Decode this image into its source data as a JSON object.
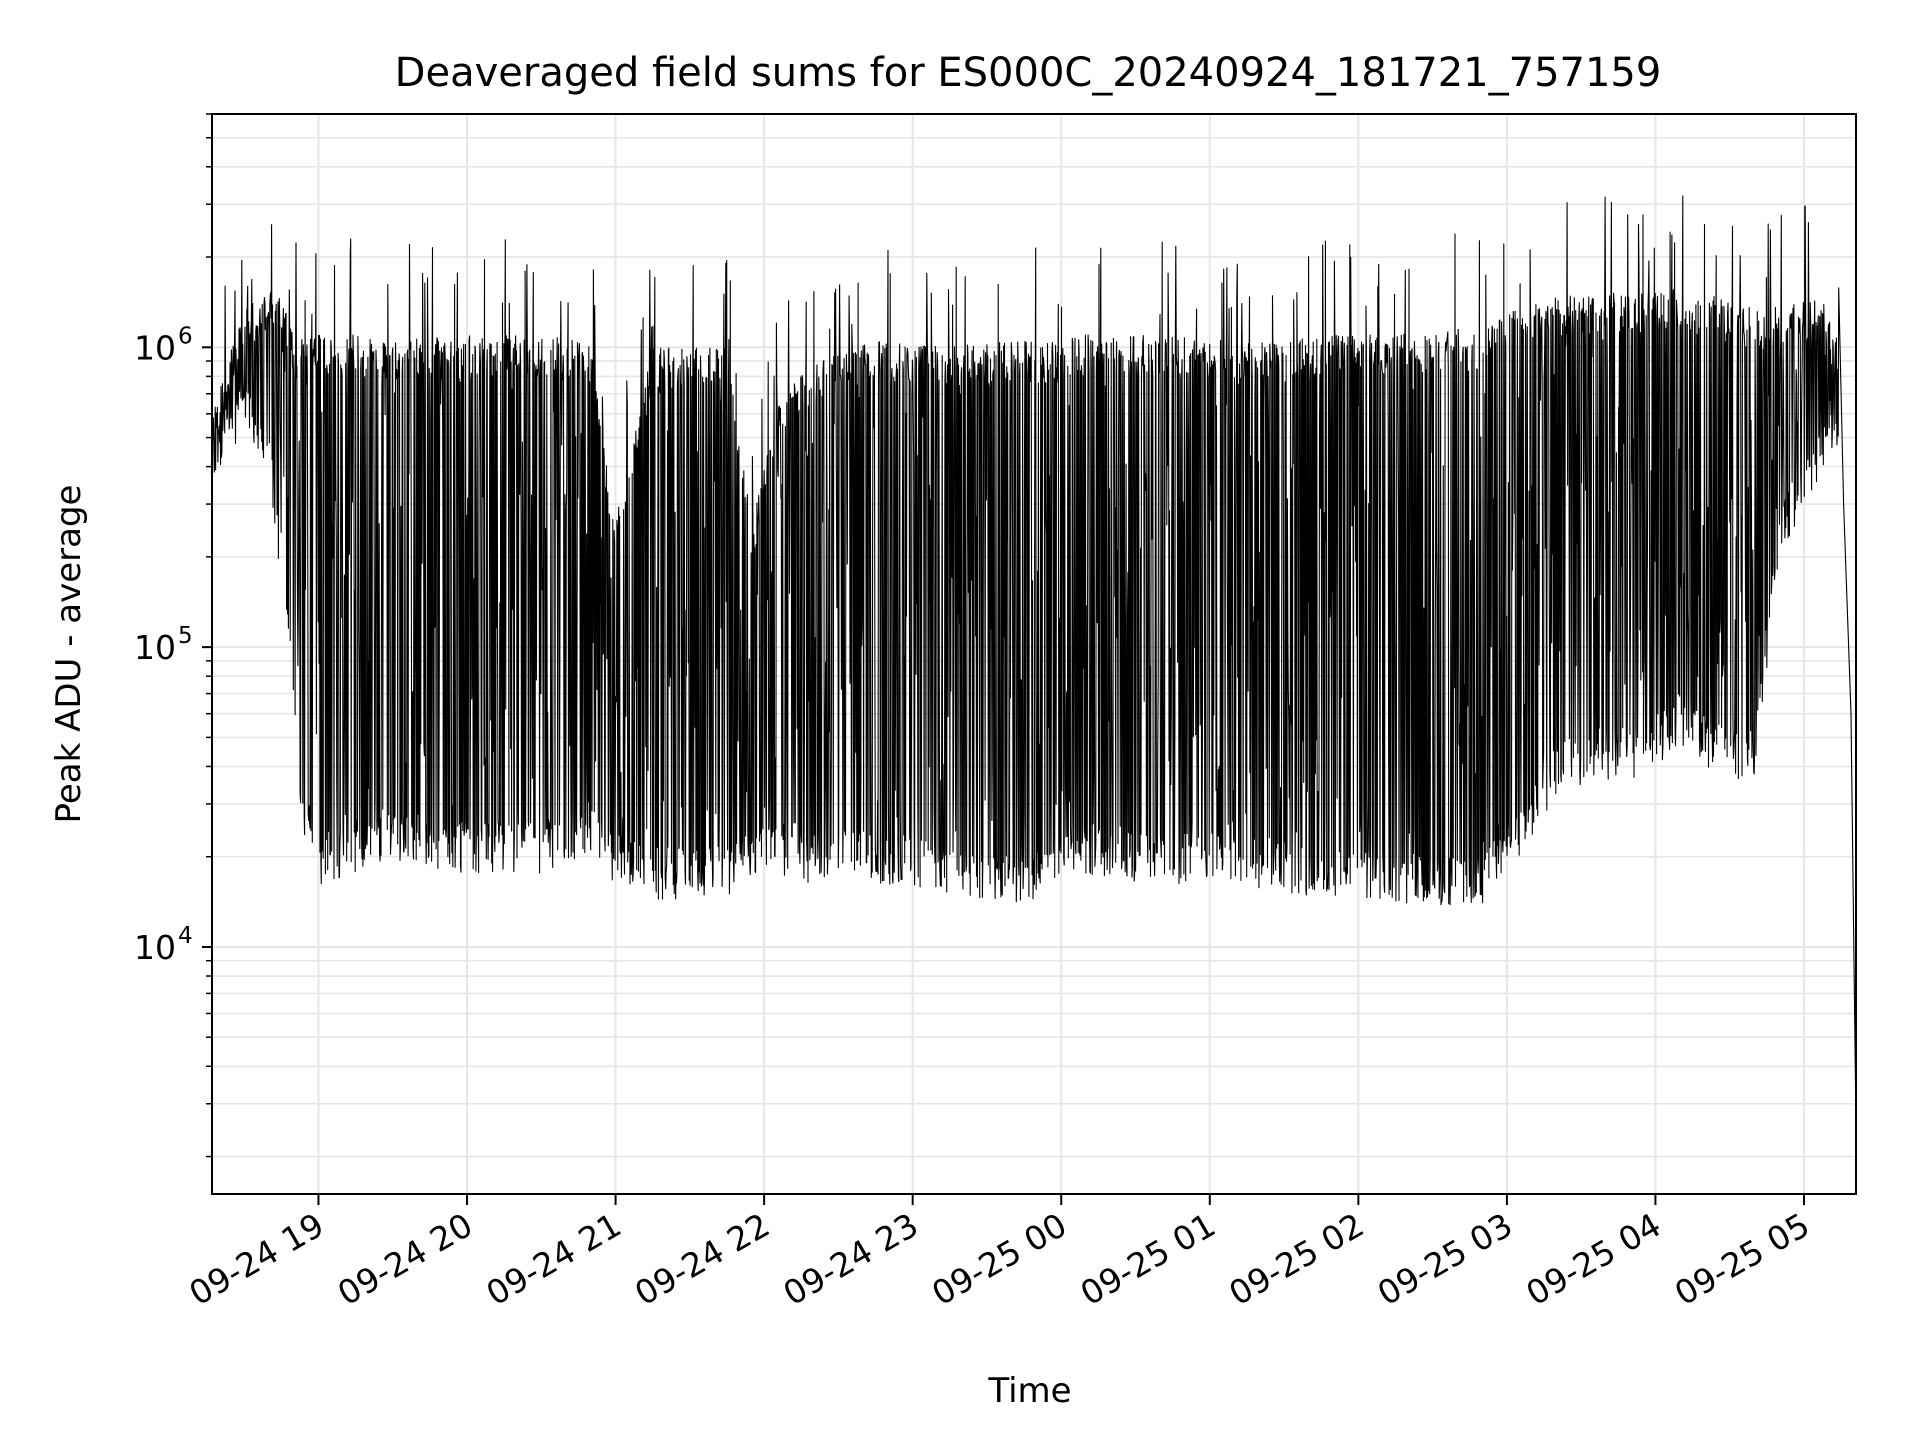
{
  "chart_data": {
    "type": "line",
    "title": "Deaveraged field sums for ES000C_20240924_181721_757159",
    "xlabel": "Time",
    "ylabel": "Peak ADU - average",
    "yscale": "log",
    "ylim": [
      1500,
      6000000
    ],
    "xlim": [
      "2024-09-24 18:17",
      "2024-09-25 05:21"
    ],
    "grid": true,
    "colors": {
      "line": "#000000",
      "grid": "#e6e6e6",
      "axes": "#000000"
    },
    "x_ticks": [
      {
        "t": "2024-09-24 19:00",
        "label": "09-24 19"
      },
      {
        "t": "2024-09-24 20:00",
        "label": "09-24 20"
      },
      {
        "t": "2024-09-24 21:00",
        "label": "09-24 21"
      },
      {
        "t": "2024-09-24 22:00",
        "label": "09-24 22"
      },
      {
        "t": "2024-09-24 23:00",
        "label": "09-24 23"
      },
      {
        "t": "2024-09-25 00:00",
        "label": "09-25 00"
      },
      {
        "t": "2024-09-25 01:00",
        "label": "09-25 01"
      },
      {
        "t": "2024-09-25 02:00",
        "label": "09-25 02"
      },
      {
        "t": "2024-09-25 03:00",
        "label": "09-25 03"
      },
      {
        "t": "2024-09-25 04:00",
        "label": "09-25 04"
      },
      {
        "t": "2024-09-25 05:00",
        "label": "09-25 05"
      }
    ],
    "y_ticks": [
      {
        "value": 10000,
        "base": "10",
        "exp": "4"
      },
      {
        "value": 100000,
        "base": "10",
        "exp": "5"
      },
      {
        "value": 1000000,
        "base": "10",
        "exp": "6"
      }
    ],
    "series": [
      {
        "x": [
          "2024-09-24 18:17",
          "2024-09-24 18:22",
          "2024-09-24 18:26",
          "2024-09-24 18:30",
          "2024-09-24 18:33",
          "2024-09-24 18:36",
          "2024-09-24 18:40",
          "2024-09-24 18:43",
          "2024-09-24 18:46",
          "2024-09-24 18:48",
          "2024-09-24 18:50",
          "2024-09-24 18:52",
          "2024-09-24 18:55",
          "2024-09-24 18:58",
          "2024-09-24 19:01",
          "2024-09-24 19:05",
          "2024-09-24 19:10",
          "2024-09-24 19:15",
          "2024-09-24 19:20",
          "2024-09-24 19:30",
          "2024-09-24 19:40",
          "2024-09-24 19:50",
          "2024-09-24 20:00",
          "2024-09-24 20:15",
          "2024-09-24 20:30",
          "2024-09-24 20:45",
          "2024-09-24 20:52",
          "2024-09-24 20:58",
          "2024-09-24 21:05",
          "2024-09-24 21:12",
          "2024-09-24 21:20",
          "2024-09-24 21:30",
          "2024-09-24 21:40",
          "2024-09-24 21:48",
          "2024-09-24 21:55",
          "2024-09-24 22:02",
          "2024-09-24 22:10",
          "2024-09-24 22:20",
          "2024-09-24 22:30",
          "2024-09-24 22:40",
          "2024-09-24 22:50",
          "2024-09-24 23:00",
          "2024-09-24 23:10",
          "2024-09-24 23:20",
          "2024-09-24 23:30",
          "2024-09-24 23:40",
          "2024-09-24 23:50",
          "2024-09-24 23:58",
          "2024-09-25 00:05",
          "2024-09-25 00:15",
          "2024-09-25 00:25",
          "2024-09-25 00:35",
          "2024-09-25 00:45",
          "2024-09-25 00:55",
          "2024-09-25 01:05",
          "2024-09-25 01:15",
          "2024-09-25 01:25",
          "2024-09-25 01:35",
          "2024-09-25 01:45",
          "2024-09-25 01:55",
          "2024-09-25 02:05",
          "2024-09-25 02:15",
          "2024-09-25 02:25",
          "2024-09-25 02:35",
          "2024-09-25 02:45",
          "2024-09-25 02:55",
          "2024-09-25 03:05",
          "2024-09-25 03:15",
          "2024-09-25 03:25",
          "2024-09-25 03:35",
          "2024-09-25 03:45",
          "2024-09-25 03:55",
          "2024-09-25 04:00",
          "2024-09-25 04:06",
          "2024-09-25 04:12",
          "2024-09-25 04:18",
          "2024-09-25 04:25",
          "2024-09-25 04:32",
          "2024-09-25 04:40",
          "2024-09-25 04:50",
          "2024-09-25 04:57",
          "2024-09-25 05:03",
          "2024-09-25 05:08",
          "2024-09-25 05:13",
          "2024-09-25 05:16",
          "2024-09-25 05:19",
          "2024-09-25 05:21"
        ],
        "y": [
          550000,
          620000,
          1400000,
          900000,
          1100000,
          1500000,
          1600000,
          500000,
          200000,
          90000,
          45000,
          25000,
          22000,
          20000,
          22000,
          25000,
          30000,
          35000,
          30000,
          35000,
          30000,
          28000,
          30000,
          30000,
          28000,
          32000,
          40000,
          80000,
          30000,
          25000,
          22000,
          22000,
          22000,
          20000,
          25000,
          30000,
          60000,
          150000,
          350000,
          500000,
          450000,
          40000,
          25000,
          23000,
          22000,
          22000,
          20000,
          20000,
          800000,
          750000,
          700000,
          600000,
          550000,
          400000,
          30000,
          25000,
          22000,
          20000,
          20000,
          22000,
          25000,
          22000,
          20000,
          20000,
          22000,
          25000,
          60000,
          70000,
          80000,
          120000,
          200000,
          300000,
          900000,
          800000,
          1000000,
          1100000,
          60000,
          55000,
          65000,
          400000,
          600000,
          700000,
          900000,
          800000,
          400000,
          80000,
          2500
        ]
      }
    ],
    "envelope": {
      "t": [
        "2024-09-24 18:17",
        "2024-09-24 18:30",
        "2024-09-24 18:40",
        "2024-09-24 18:45",
        "2024-09-24 18:50",
        "2024-09-24 18:55",
        "2024-09-24 19:00",
        "2024-09-24 19:15",
        "2024-09-24 19:30",
        "2024-09-24 20:00",
        "2024-09-24 20:30",
        "2024-09-24 20:50",
        "2024-09-24 21:00",
        "2024-09-24 21:15",
        "2024-09-24 21:30",
        "2024-09-24 21:45",
        "2024-09-24 21:55",
        "2024-09-24 22:05",
        "2024-09-24 22:15",
        "2024-09-24 22:30",
        "2024-09-24 22:45",
        "2024-09-24 23:00",
        "2024-09-24 23:15",
        "2024-09-24 23:30",
        "2024-09-24 23:45",
        "2024-09-24 23:58",
        "2024-09-25 00:10",
        "2024-09-25 00:30",
        "2024-09-25 00:50",
        "2024-09-25 01:10",
        "2024-09-25 01:30",
        "2024-09-25 01:50",
        "2024-09-25 02:10",
        "2024-09-25 02:30",
        "2024-09-25 02:50",
        "2024-09-25 03:05",
        "2024-09-25 03:20",
        "2024-09-25 03:35",
        "2024-09-25 03:50",
        "2024-09-25 04:00",
        "2024-09-25 04:10",
        "2024-09-25 04:20",
        "2024-09-25 04:30",
        "2024-09-25 04:40",
        "2024-09-25 04:50",
        "2024-09-25 05:00",
        "2024-09-25 05:08",
        "2024-09-25 05:14"
      ],
      "upper": [
        600000,
        1300000,
        1500000,
        1400000,
        1050000,
        1000000,
        1050000,
        1050000,
        1000000,
        1050000,
        1050000,
        1000000,
        250000,
        950000,
        950000,
        950000,
        250000,
        600000,
        780000,
        950000,
        1000000,
        1000000,
        950000,
        1000000,
        1000000,
        1000000,
        1050000,
        1050000,
        1050000,
        1000000,
        1000000,
        1050000,
        1050000,
        1100000,
        1100000,
        1300000,
        1400000,
        1450000,
        1450000,
        1450000,
        1500000,
        1450000,
        1350000,
        1300000,
        1300000,
        1400000,
        1350000,
        1000000
      ],
      "lower": [
        450000,
        650000,
        450000,
        200000,
        60000,
        25000,
        20000,
        22000,
        24000,
        22000,
        22000,
        24000,
        20000,
        18000,
        18000,
        18000,
        22000,
        22000,
        20000,
        22000,
        20000,
        20000,
        18000,
        18000,
        17000,
        20000,
        22000,
        20000,
        20000,
        20000,
        19000,
        18000,
        18000,
        17000,
        17000,
        25000,
        40000,
        45000,
        45000,
        50000,
        60000,
        50000,
        45000,
        45000,
        250000,
        350000,
        500000,
        500000
      ]
    }
  }
}
